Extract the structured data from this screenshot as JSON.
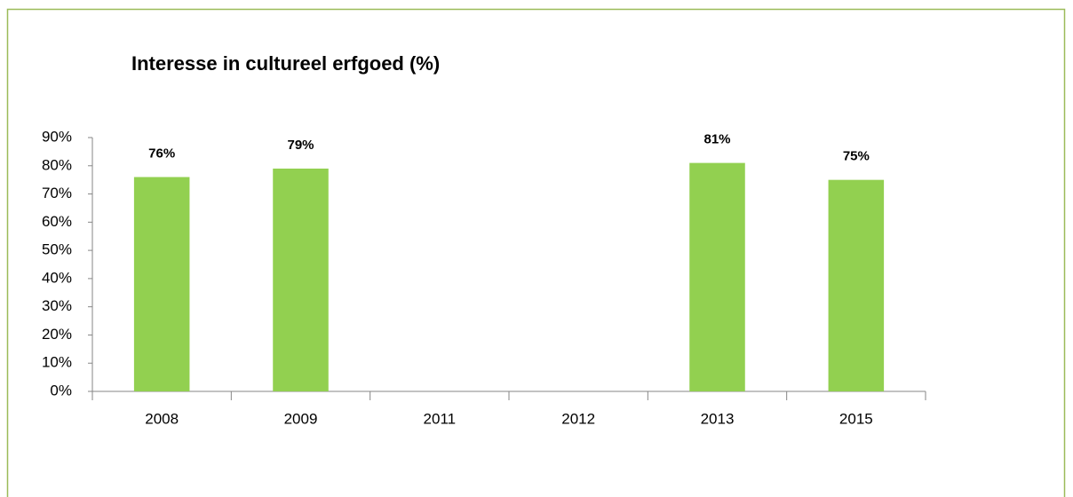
{
  "chart_data": {
    "type": "bar",
    "title": "Interesse in cultureel erfgoed (%)",
    "categories": [
      "2008",
      "2009",
      "2011",
      "2012",
      "2013",
      "2015"
    ],
    "values": [
      76,
      79,
      null,
      null,
      81,
      75
    ],
    "value_labels": [
      "76%",
      "79%",
      null,
      null,
      "81%",
      "75%"
    ],
    "color": "#92d050",
    "ylim": [
      0,
      90
    ],
    "yticks": [
      {
        "value": 0,
        "label": "0%"
      },
      {
        "value": 10,
        "label": "10%"
      },
      {
        "value": 20,
        "label": "20%"
      },
      {
        "value": 30,
        "label": "30%"
      },
      {
        "value": 40,
        "label": "40%"
      },
      {
        "value": 50,
        "label": "50%"
      },
      {
        "value": 60,
        "label": "60%"
      },
      {
        "value": 70,
        "label": "70%"
      },
      {
        "value": 80,
        "label": "80%"
      },
      {
        "value": 90,
        "label": "90%"
      }
    ],
    "grid": false
  }
}
